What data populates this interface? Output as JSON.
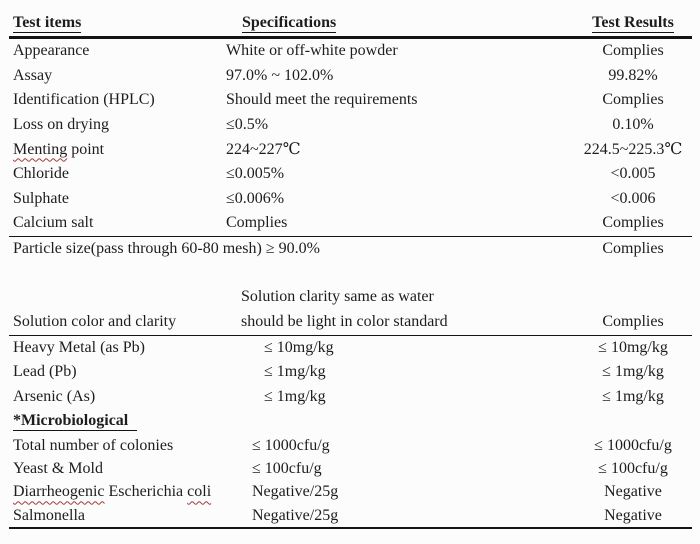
{
  "colors": {
    "background": "#fcfcfc",
    "text": "#1d1d1d",
    "rule": "#141414",
    "spellcheck": "#a33a3a"
  },
  "table": {
    "header": {
      "test_items": "Test items",
      "specifications": "Specifications",
      "test_results": "Test Results"
    },
    "rows": [
      {
        "item": "Appearance",
        "spec": "White or off-white powder",
        "result": "Complies"
      },
      {
        "item": "Assay",
        "spec": "97.0% ~ 102.0%",
        "result": "99.82%"
      },
      {
        "item": "Identification (HPLC)",
        "spec": "Should meet the requirements",
        "result": "Complies"
      },
      {
        "item": "Loss on drying",
        "spec": "≤0.5%",
        "result": "0.10%"
      },
      {
        "item_wavy": "Menting",
        "item_rest": " point",
        "spec": "224~227℃",
        "result": "224.5~225.3℃"
      },
      {
        "item": "Chloride",
        "spec": "≤0.005%",
        "result": "<0.005"
      },
      {
        "item": "Sulphate",
        "spec": "≤0.006%",
        "result": "<0.006"
      },
      {
        "item": "Calcium salt",
        "spec": "Complies",
        "result": "Complies"
      },
      {
        "item": "Particle size(pass through 60-80 mesh) ≥ 90.0%",
        "result": "Complies"
      },
      {
        "item": "Solution color and clarity",
        "spec_line1": "Solution clarity same as water",
        "spec_line2": "should be light in color standard",
        "result": "Complies"
      },
      {
        "item": "Heavy Metal (as Pb)",
        "spec": "≤ 10mg/kg",
        "result": "≤ 10mg/kg"
      },
      {
        "item": "Lead (Pb)",
        "spec": "≤ 1mg/kg",
        "result": "≤ 1mg/kg"
      },
      {
        "item": "Arsenic (As)",
        "spec": "≤ 1mg/kg",
        "result": "≤ 1mg/kg"
      },
      {
        "item": "*Microbiological"
      },
      {
        "item": "Total number of colonies",
        "spec": "≤ 1000cfu/g",
        "result": "≤ 1000cfu/g"
      },
      {
        "item": "Yeast & Mold",
        "spec": "≤ 100cfu/g",
        "result": "≤ 100cfu/g"
      },
      {
        "item_wavy": "Diarrheogenic",
        "item_mid": " Escherichia ",
        "item_wavy2": "coli",
        "spec": "Negative/25g",
        "result": "Negative"
      },
      {
        "item": "Salmonella",
        "spec": "Negative/25g",
        "result": "Negative"
      }
    ]
  }
}
